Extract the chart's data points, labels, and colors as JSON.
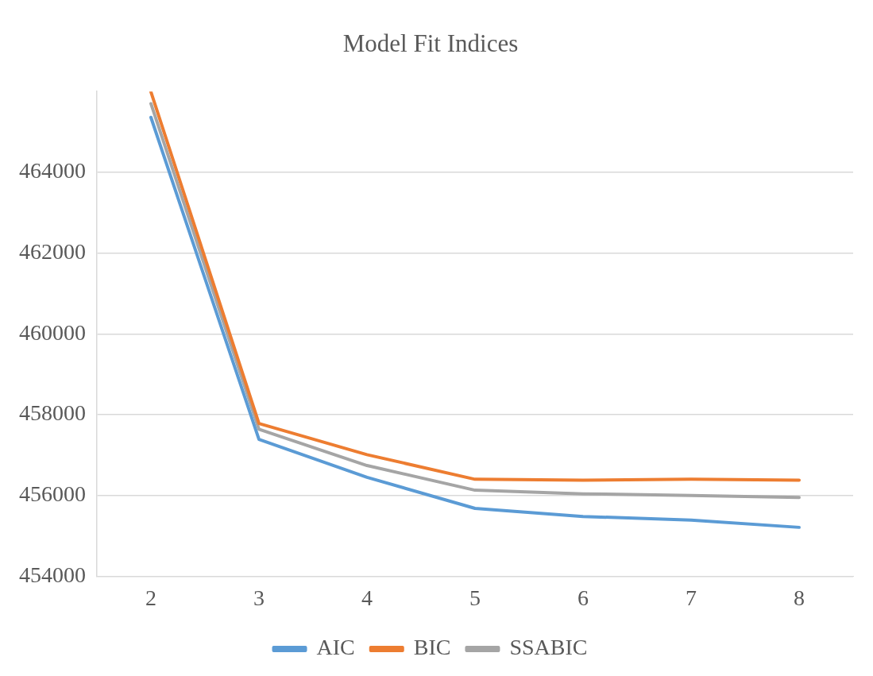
{
  "chart_data": {
    "type": "line",
    "title": "Model Fit Indices",
    "categories": [
      "2",
      "3",
      "4",
      "5",
      "6",
      "7",
      "8"
    ],
    "series": [
      {
        "name": "AIC",
        "color": "#5b9bd5",
        "values": [
          465360,
          457390,
          456450,
          455680,
          455480,
          455390,
          455210
        ]
      },
      {
        "name": "BIC",
        "color": "#ed7d31",
        "values": [
          465990,
          457780,
          457010,
          456400,
          456380,
          456400,
          456380
        ]
      },
      {
        "name": "SSABIC",
        "color": "#a5a5a5",
        "values": [
          465700,
          457640,
          456740,
          456130,
          456040,
          456000,
          455950
        ]
      }
    ],
    "ylim": [
      454000,
      466000
    ],
    "yticks": [
      454000,
      456000,
      458000,
      460000,
      462000,
      464000
    ],
    "grid": "y",
    "legend": "bottom",
    "marker": "none",
    "line_style": "solid"
  }
}
